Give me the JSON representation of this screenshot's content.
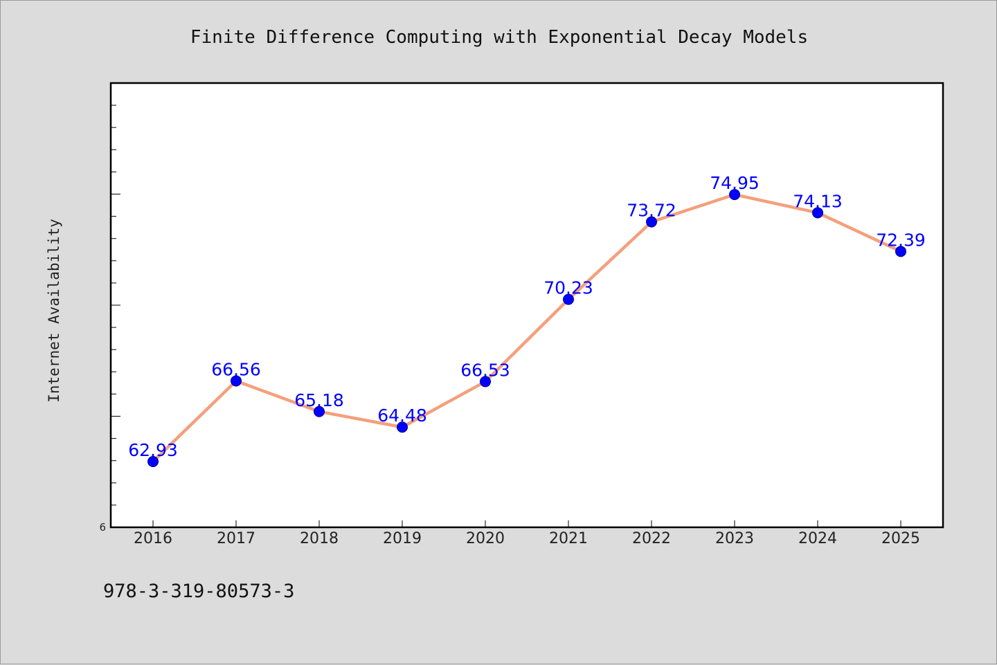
{
  "chart_data": {
    "type": "line",
    "title": "Finite Difference Computing with Exponential Decay Models",
    "xlabel": "",
    "ylabel": "Internet Availability",
    "categories": [
      "2016",
      "2017",
      "2018",
      "2019",
      "2020",
      "2021",
      "2022",
      "2023",
      "2024",
      "2025"
    ],
    "series": [
      {
        "values": [
          62.93,
          66.56,
          65.18,
          64.48,
          66.53,
          70.23,
          73.72,
          74.95,
          74.13,
          72.39
        ],
        "labels": [
          "62.93",
          "66.56",
          "65.18",
          "64.48",
          "66.53",
          "70.23",
          "73.72",
          "74.95",
          "74.13",
          "72.39"
        ],
        "line_color": "#f4a07c",
        "marker_color": "#0000ff",
        "label_color": "#0000ff"
      }
    ],
    "ylim": [
      59.97,
      79.97
    ],
    "y_tick_labels": [
      "6"
    ],
    "grid": false,
    "legend": "none"
  },
  "footer": {
    "isbn": "978-3-319-80573-3"
  },
  "colors": {
    "background": "#dcdcdc",
    "plot_background": "#ffffff",
    "axes": "#000000"
  }
}
